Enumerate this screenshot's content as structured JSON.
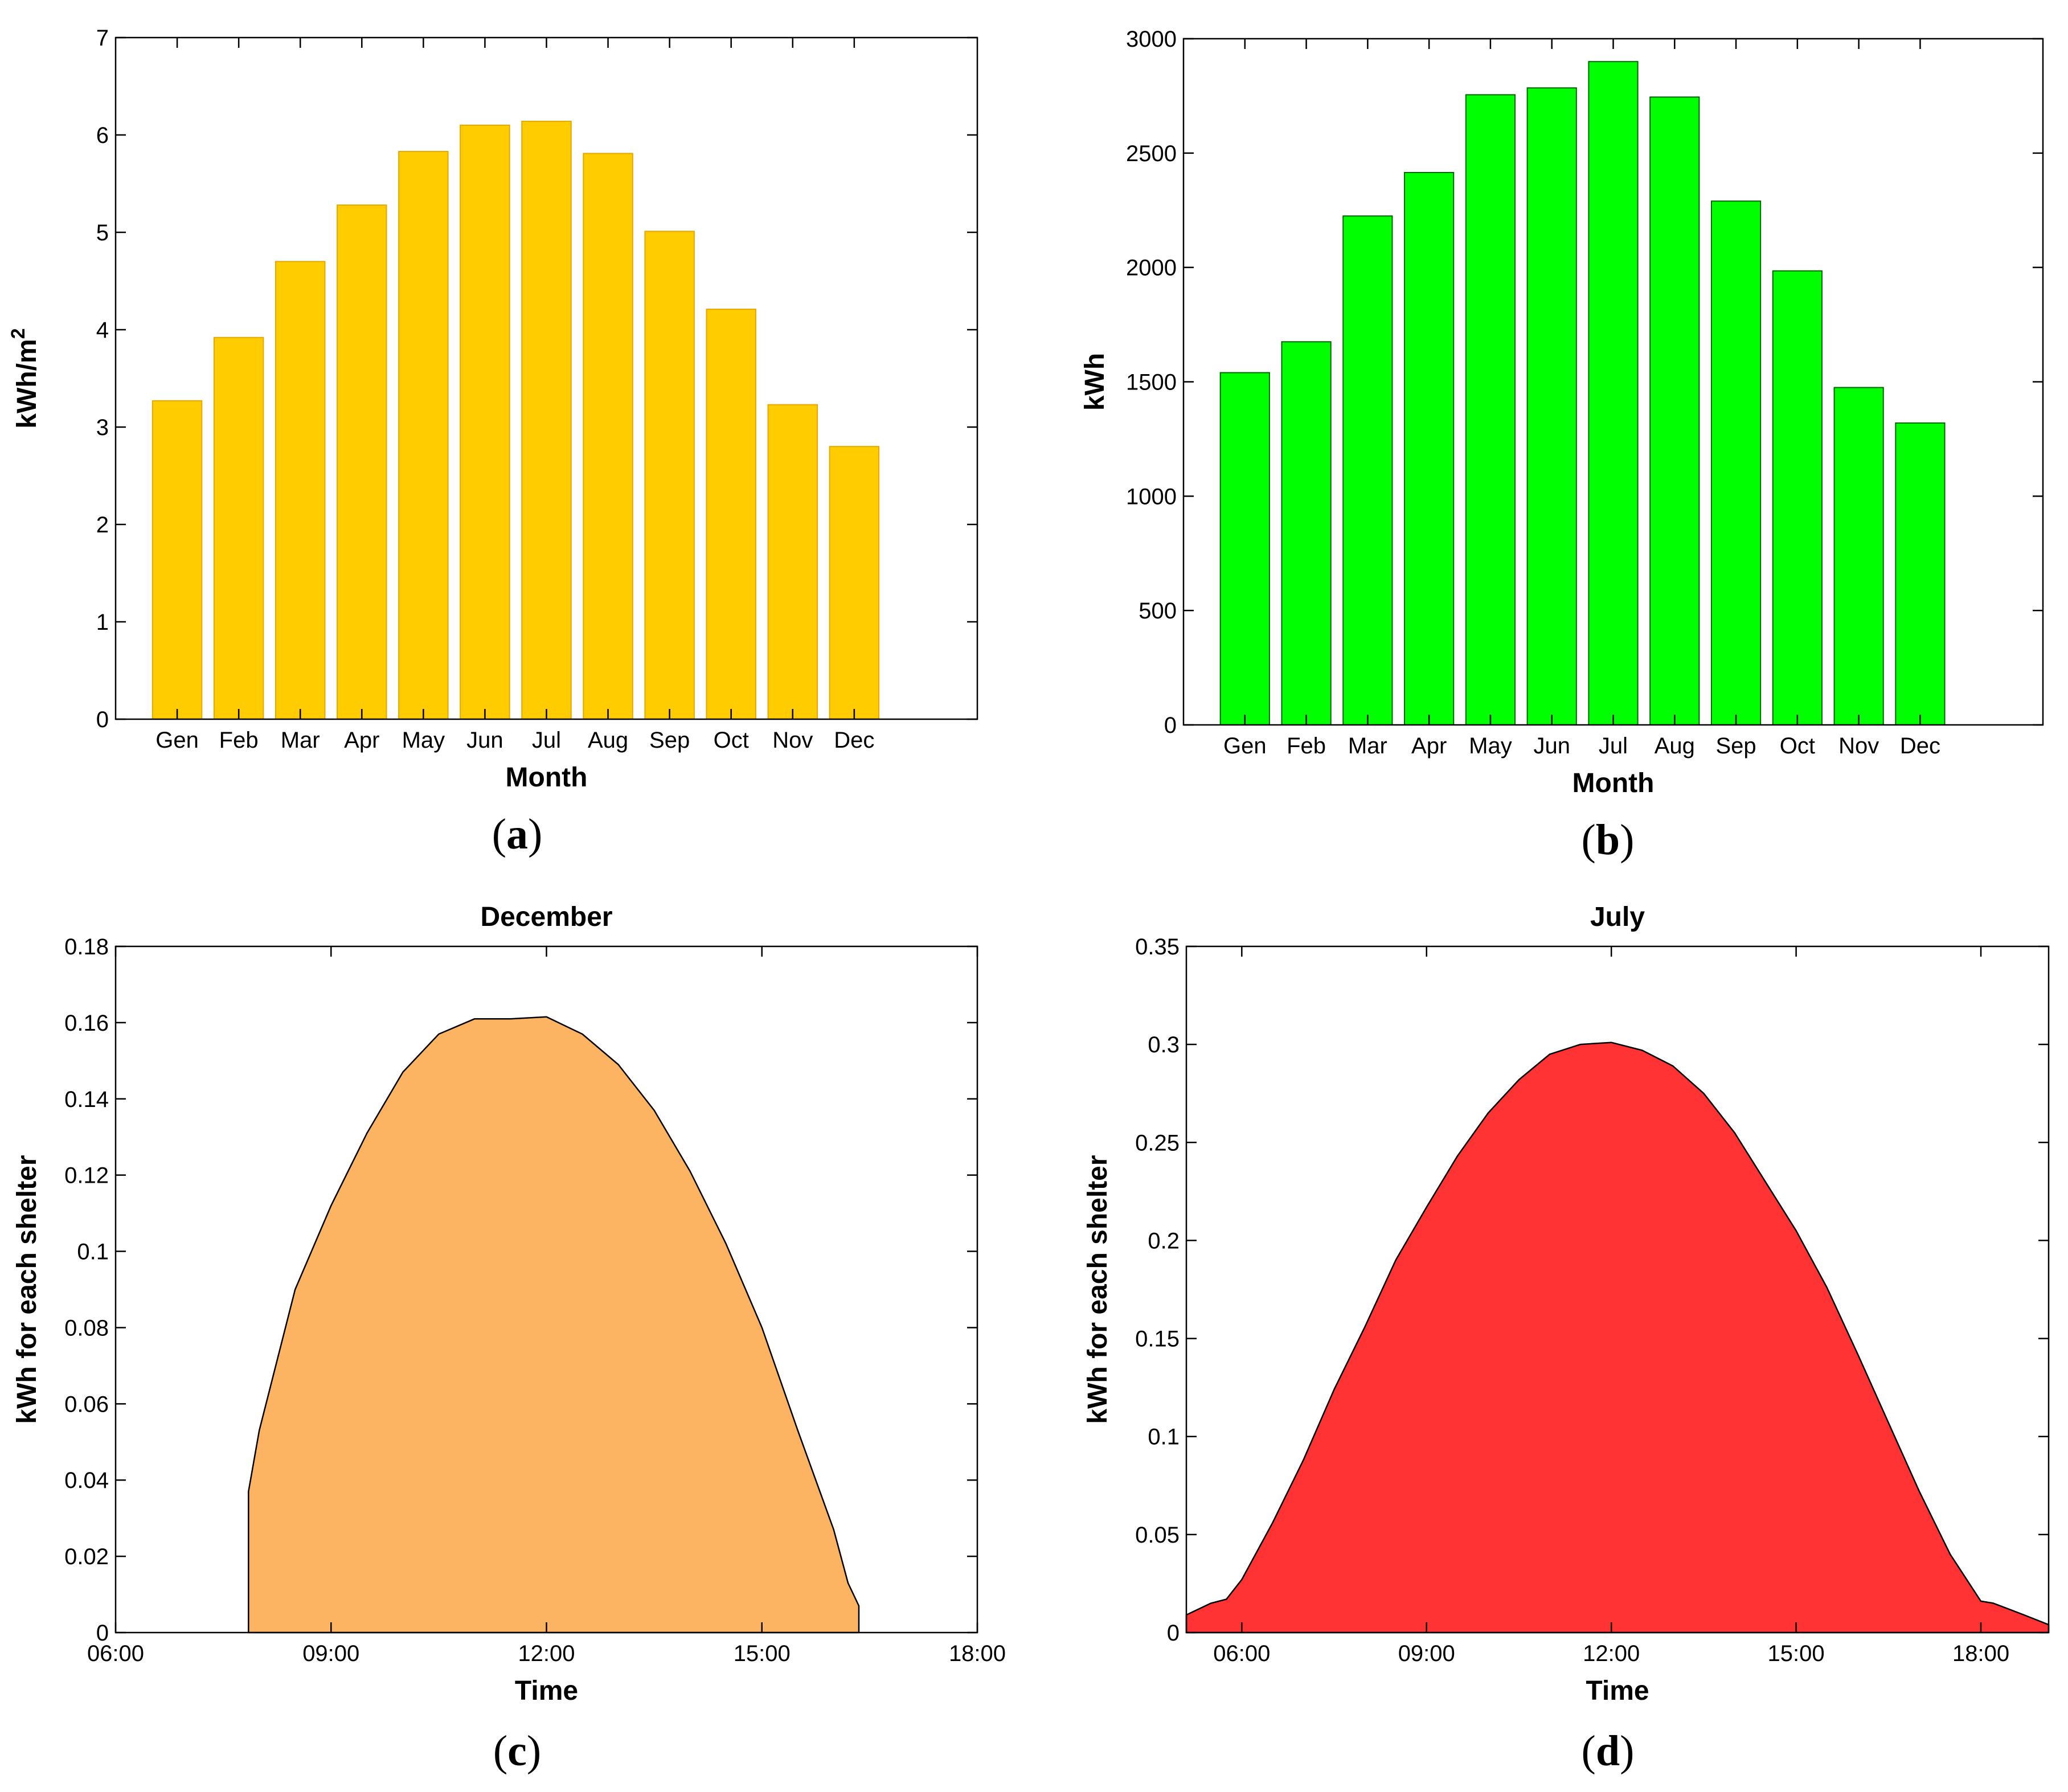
{
  "chart_data": [
    {
      "id": "a",
      "panel_label": "a",
      "type": "bar",
      "title": "",
      "xlabel": "Month",
      "ylabel": "kWh/m",
      "ylabel_superscript": "2",
      "categories": [
        "Gen",
        "Feb",
        "Mar",
        "Apr",
        "May",
        "Jun",
        "Jul",
        "Aug",
        "Sep",
        "Oct",
        "Nov",
        "Dec"
      ],
      "values": [
        3.27,
        3.92,
        4.7,
        5.28,
        5.83,
        6.1,
        6.14,
        5.81,
        5.01,
        4.21,
        3.23,
        2.8
      ],
      "ylim": [
        0,
        7
      ],
      "yticks": [
        "0",
        "1",
        "2",
        "3",
        "4",
        "5",
        "6",
        "7"
      ],
      "slots": 14,
      "color": "#FFCC00",
      "edge_color": "#E6A800"
    },
    {
      "id": "b",
      "panel_label": "b",
      "type": "bar",
      "title": "",
      "xlabel": "Month",
      "ylabel": "kWh",
      "categories": [
        "Gen",
        "Feb",
        "Mar",
        "Apr",
        "May",
        "Jun",
        "Jul",
        "Aug",
        "Sep",
        "Oct",
        "Nov",
        "Dec"
      ],
      "values": [
        1540,
        1675,
        2225,
        2415,
        2755,
        2785,
        2900,
        2745,
        2290,
        1985,
        1475,
        1320
      ],
      "ylim": [
        0,
        3000
      ],
      "yticks": [
        "0",
        "500",
        "1000",
        "1500",
        "2000",
        "2500",
        "3000"
      ],
      "slots": 14,
      "color": "#00FF00",
      "edge_color": "#006600"
    },
    {
      "id": "c",
      "panel_label": "c",
      "type": "area",
      "title": "December",
      "xlabel": "Time",
      "ylabel": "kWh for each shelter",
      "xlim": [
        6,
        18
      ],
      "ylim": [
        0,
        0.18
      ],
      "xticks": [
        "06:00",
        "09:00",
        "12:00",
        "15:00",
        "18:00"
      ],
      "yticks": [
        "0",
        "0.02",
        "0.04",
        "0.06",
        "0.08",
        "0.1",
        "0.12",
        "0.14",
        "0.16",
        "0.18"
      ],
      "x": [
        7.85,
        7.85,
        8.0,
        8.5,
        9.0,
        9.5,
        10.0,
        10.5,
        11.0,
        11.5,
        12.0,
        12.5,
        13.0,
        13.5,
        14.0,
        14.5,
        15.0,
        15.5,
        16.0,
        16.2,
        16.35,
        16.35
      ],
      "y": [
        0,
        0.037,
        0.053,
        0.09,
        0.112,
        0.131,
        0.147,
        0.157,
        0.161,
        0.161,
        0.1615,
        0.157,
        0.149,
        0.137,
        0.121,
        0.102,
        0.08,
        0.053,
        0.027,
        0.013,
        0.007,
        0
      ],
      "color": "#FDB462",
      "edge_color": "#000000"
    },
    {
      "id": "d",
      "panel_label": "d",
      "type": "area",
      "title": "July",
      "xlabel": "Time",
      "ylabel": "kWh for each shelter",
      "xlim": [
        5.1,
        19.1
      ],
      "ylim": [
        0,
        0.35
      ],
      "xticks": [
        "06:00",
        "09:00",
        "12:00",
        "15:00",
        "18:00"
      ],
      "xtick_values": [
        6,
        9,
        12,
        15,
        18
      ],
      "yticks": [
        "0",
        "0.05",
        "0.1",
        "0.15",
        "0.2",
        "0.25",
        "0.3",
        "0.35"
      ],
      "x": [
        5.1,
        5.1,
        5.5,
        5.75,
        6.0,
        6.5,
        7.0,
        7.5,
        8.0,
        8.5,
        9.0,
        9.5,
        10.0,
        10.5,
        11.0,
        11.5,
        12.0,
        12.5,
        13.0,
        13.5,
        14.0,
        14.5,
        15.0,
        15.5,
        16.0,
        16.5,
        17.0,
        17.5,
        18.0,
        18.2,
        18.45,
        18.7,
        19.1,
        19.1
      ],
      "y": [
        0,
        0.009,
        0.015,
        0.017,
        0.027,
        0.056,
        0.088,
        0.124,
        0.156,
        0.19,
        0.217,
        0.243,
        0.265,
        0.282,
        0.295,
        0.3,
        0.301,
        0.297,
        0.289,
        0.275,
        0.255,
        0.23,
        0.205,
        0.176,
        0.142,
        0.107,
        0.072,
        0.04,
        0.016,
        0.015,
        0.012,
        0.009,
        0.004,
        0
      ],
      "color": "#FF3333",
      "edge_color": "#000000"
    }
  ]
}
